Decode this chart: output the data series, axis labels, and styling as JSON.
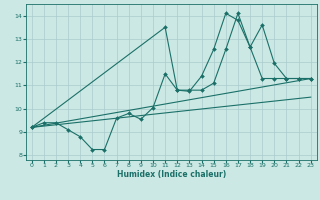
{
  "xlabel": "Humidex (Indice chaleur)",
  "bg_color": "#cce8e4",
  "grid_color": "#aacccc",
  "line_color": "#1a7068",
  "xlim": [
    -0.5,
    23.5
  ],
  "ylim": [
    7.8,
    14.5
  ],
  "xticks": [
    0,
    1,
    2,
    3,
    4,
    5,
    6,
    7,
    8,
    9,
    10,
    11,
    12,
    13,
    14,
    15,
    16,
    17,
    18,
    19,
    20,
    21,
    22,
    23
  ],
  "yticks": [
    8,
    9,
    10,
    11,
    12,
    13,
    14
  ],
  "line1_x": [
    0,
    1,
    2,
    3,
    4,
    5,
    6,
    7,
    8,
    9,
    10,
    11,
    12,
    13,
    14,
    15,
    16,
    17,
    18,
    19,
    20,
    21,
    22,
    23
  ],
  "line1_y": [
    9.2,
    9.4,
    9.4,
    9.1,
    8.8,
    8.25,
    8.25,
    9.6,
    9.8,
    9.55,
    10.05,
    11.5,
    10.8,
    10.8,
    10.8,
    11.1,
    12.55,
    14.1,
    12.65,
    11.3,
    11.3,
    11.3,
    11.3,
    11.3
  ],
  "line2_x": [
    0,
    11,
    12,
    13,
    14,
    15,
    16,
    17,
    18,
    19,
    20,
    21,
    22,
    23
  ],
  "line2_y": [
    9.2,
    13.5,
    10.8,
    10.75,
    11.4,
    12.55,
    14.1,
    13.8,
    12.65,
    13.6,
    11.95,
    11.3,
    11.3,
    11.3
  ],
  "line3_x": [
    0,
    23
  ],
  "line3_y": [
    9.2,
    11.3
  ],
  "line4_x": [
    0,
    23
  ],
  "line4_y": [
    9.2,
    10.5
  ]
}
